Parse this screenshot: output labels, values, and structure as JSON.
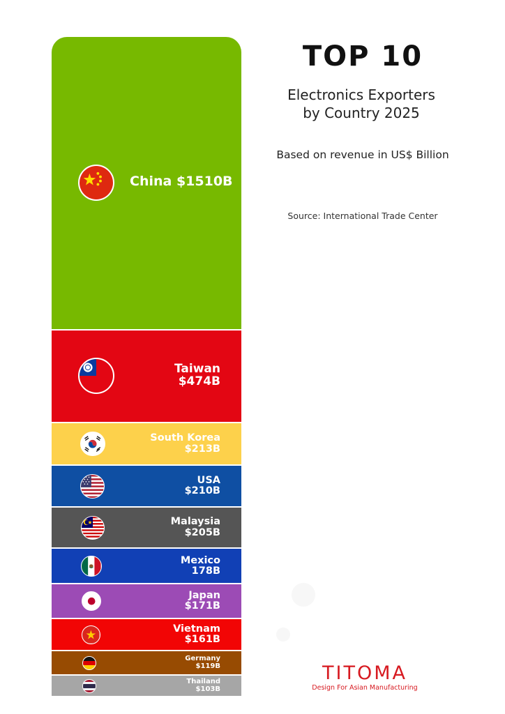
{
  "header": {
    "title": "TOP 10",
    "subtitle_lines": [
      "Electronics Exporters",
      "by Country 2025"
    ],
    "basis": "Based on revenue in US$ Billion",
    "source": "Source: International Trade Center"
  },
  "brand": {
    "name": "TITOMA",
    "tagline": "Design For Asian Manufacturing",
    "color": "#d71920"
  },
  "chart_data": {
    "type": "bar",
    "orientation": "stacked-vertical",
    "title": "TOP 10 Electronics Exporters by Country 2025",
    "unit": "US$ Billion",
    "categories": [
      "China",
      "Taiwan",
      "South Korea",
      "USA",
      "Malaysia",
      "Mexico",
      "Japan",
      "Vietnam",
      "Germany",
      "Thailand"
    ],
    "values": [
      1510,
      474,
      213,
      210,
      205,
      178,
      171,
      161,
      119,
      103
    ],
    "labels": [
      [
        "China $1510B"
      ],
      [
        "Taiwan",
        "$474B"
      ],
      [
        "South Korea",
        "$213B"
      ],
      [
        "USA",
        "$210B"
      ],
      [
        "Malaysia",
        "$205B"
      ],
      [
        "Mexico",
        "178B"
      ],
      [
        "Japan",
        "$171B"
      ],
      [
        "Vietnam",
        "$161B"
      ],
      [
        "Germany",
        "$119B"
      ],
      [
        "Thailand",
        "$103B"
      ]
    ],
    "colors": [
      "#77b900",
      "#e30613",
      "#fdd14b",
      "#0f4fa3",
      "#555555",
      "#1140b5",
      "#9c4bb5",
      "#f20505",
      "#974b02",
      "#a6a6a6"
    ],
    "flags": [
      "china-flag-icon",
      "taiwan-flag-icon",
      "south-korea-flag-icon",
      "usa-flag-icon",
      "malaysia-flag-icon",
      "mexico-flag-icon",
      "japan-flag-icon",
      "vietnam-flag-icon",
      "germany-flag-icon",
      "thailand-flag-icon"
    ],
    "grid": false,
    "legend": "none"
  }
}
